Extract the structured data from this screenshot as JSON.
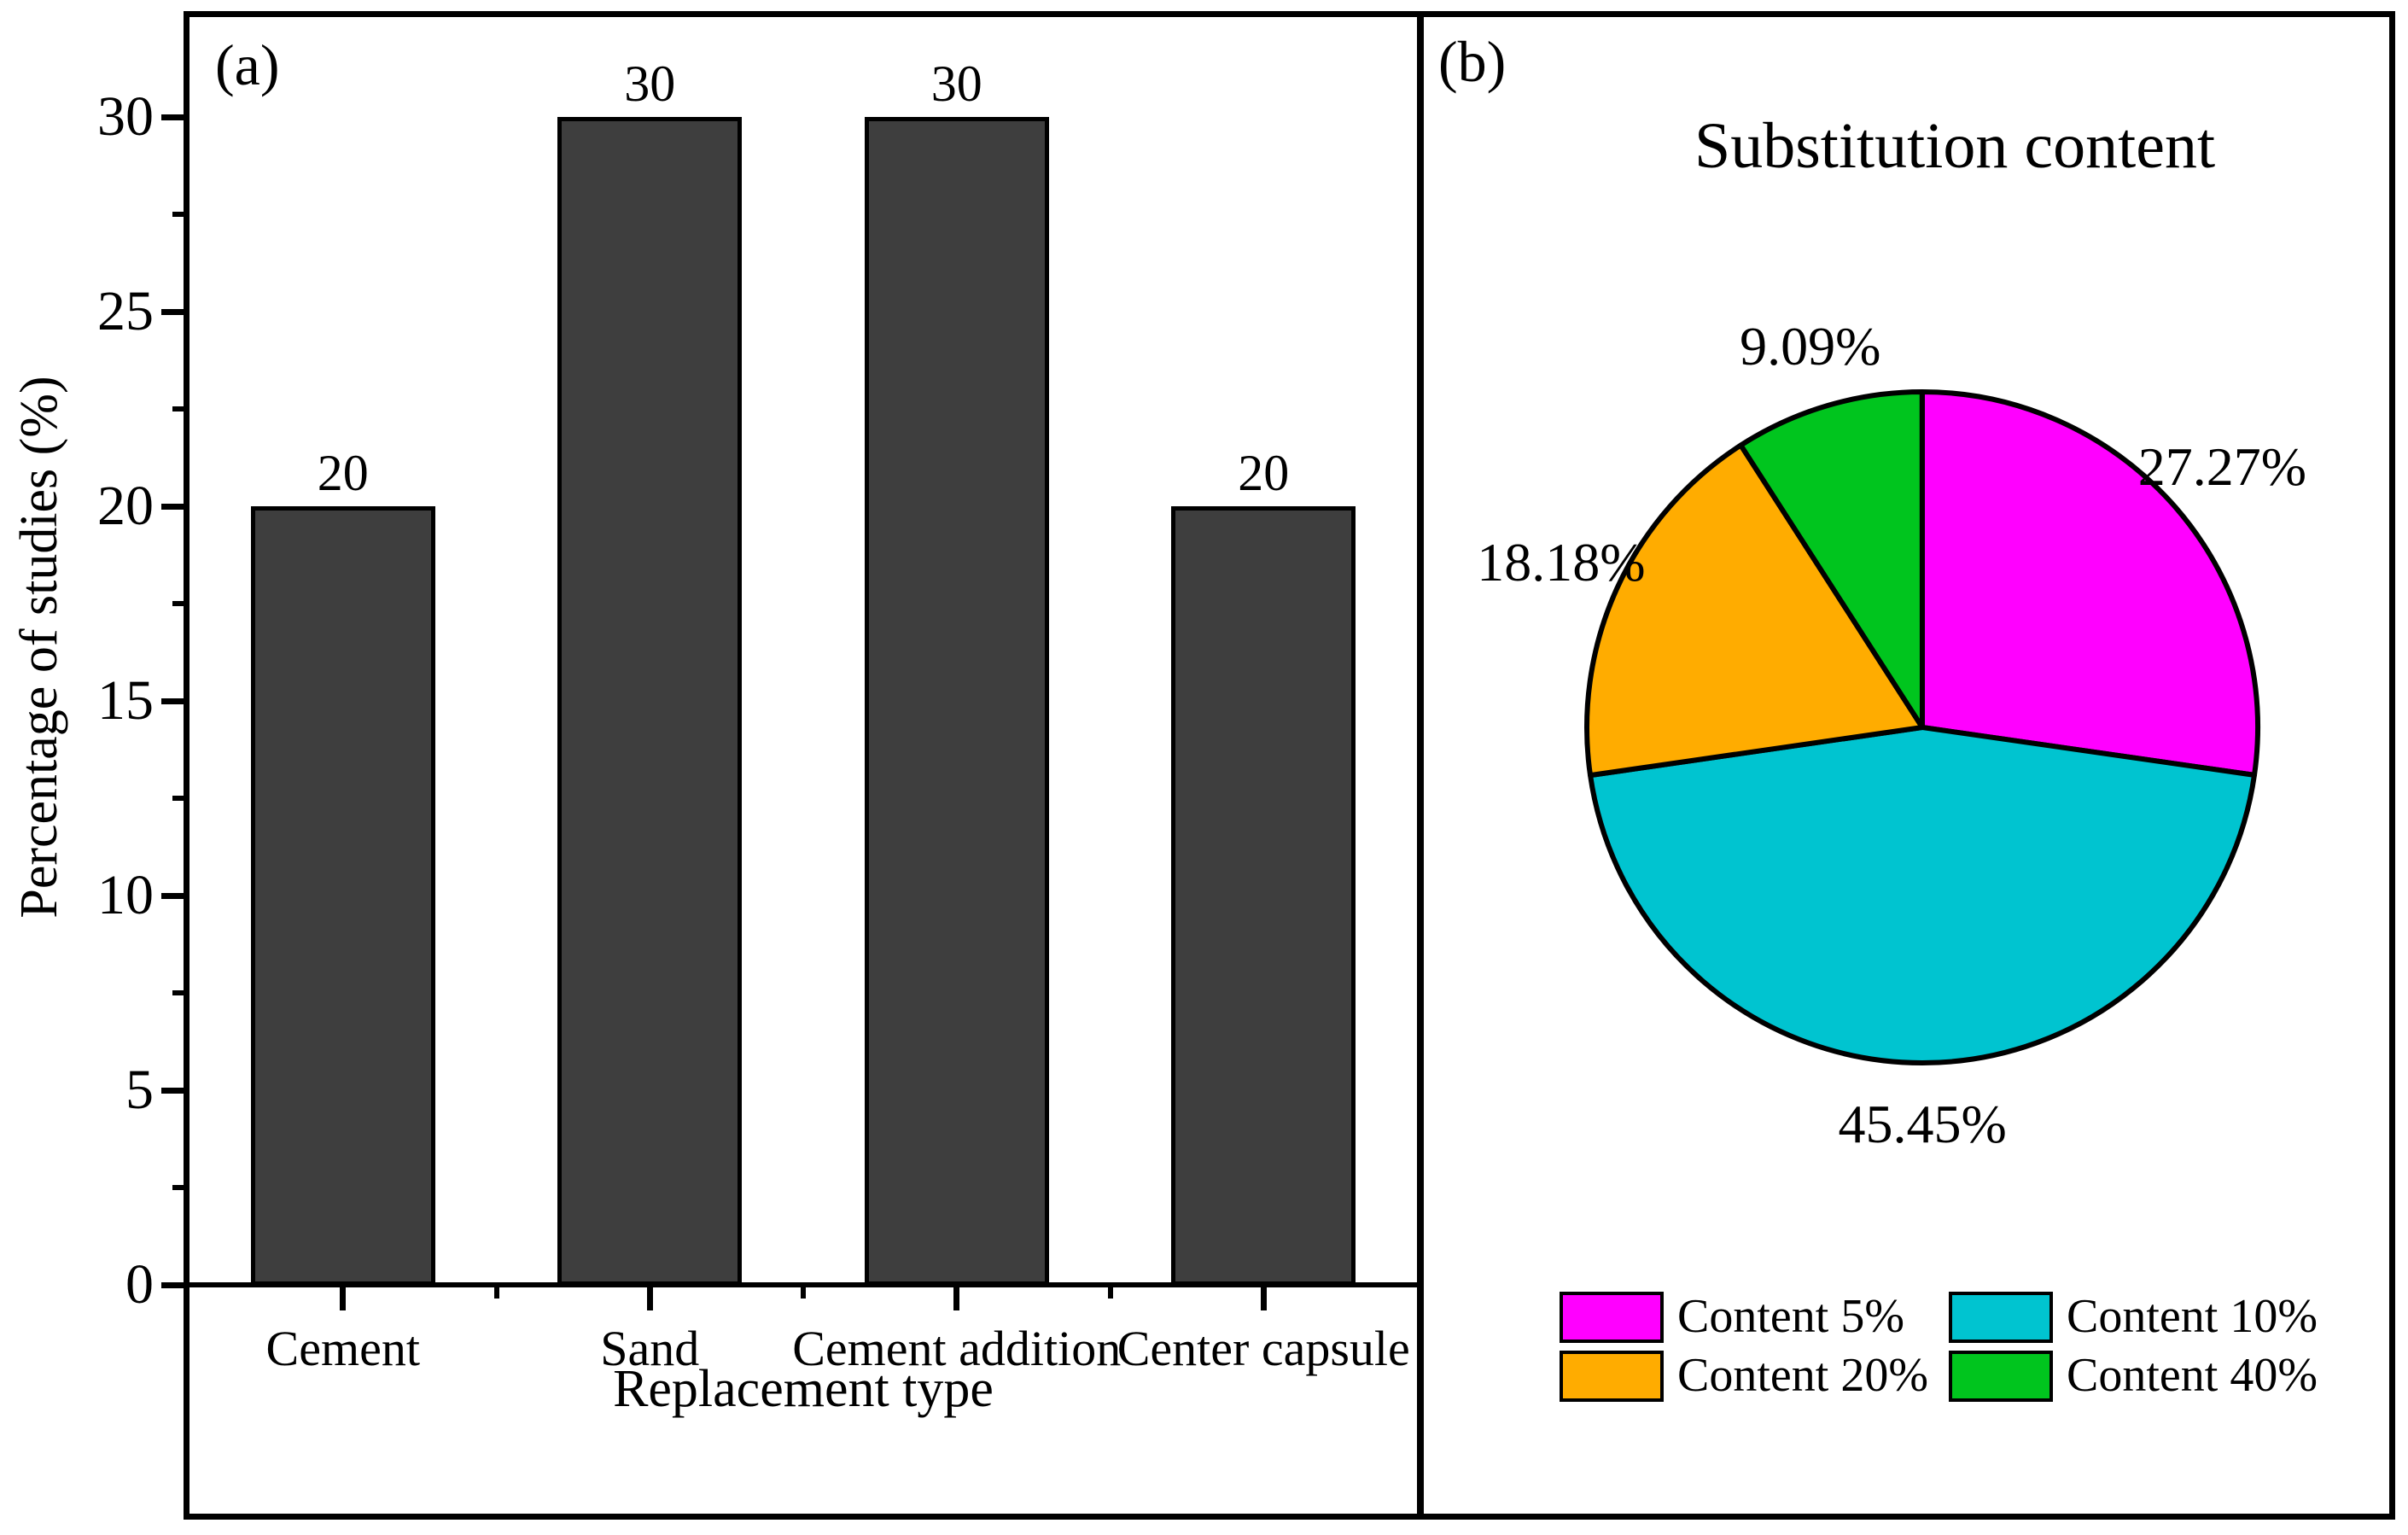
{
  "panels": {
    "a_label": "(a)",
    "b_label": "(b)"
  },
  "bar_chart": {
    "ylabel": "Percentage of studies (%)",
    "xlabel": "Replacement type",
    "ytick_labels": [
      "0",
      "5",
      "10",
      "15",
      "20",
      "25",
      "30"
    ],
    "categories": [
      "Cement",
      "Sand",
      "Cement addition",
      "Center capsule"
    ],
    "values": [
      20,
      30,
      30,
      20
    ],
    "bar_value_labels": [
      "20",
      "30",
      "30",
      "20"
    ],
    "bar_fill": "#3e3e3e",
    "axis_color": "#000000"
  },
  "pie_chart": {
    "title": "Substitution content",
    "slices": [
      {
        "legend_label": "Content 5%",
        "pct_label": "27.27%",
        "value": 27.27,
        "color": "#ff00ff"
      },
      {
        "legend_label": "Content 10%",
        "pct_label": "45.45%",
        "value": 45.45,
        "color": "#00c4d0"
      },
      {
        "legend_label": "Content 20%",
        "pct_label": "18.18%",
        "value": 18.18,
        "color": "#ffac00"
      },
      {
        "legend_label": "Content 40%",
        "pct_label": "9.09%",
        "value": 9.09,
        "color": "#00c51e"
      }
    ]
  },
  "chart_data": [
    {
      "type": "bar",
      "panel": "(a)",
      "title": "",
      "categories": [
        "Cement",
        "Sand",
        "Cement addition",
        "Center capsule"
      ],
      "values": [
        20,
        30,
        30,
        20
      ],
      "data_labels": [
        "20",
        "30",
        "30",
        "20"
      ],
      "xlabel": "Replacement type",
      "ylabel": "Percentage of studies (%)",
      "ylim": [
        0,
        32.5
      ],
      "ytick_step": 5,
      "ytick_minor_step": 2.5,
      "grid": false,
      "bar_color": "#3e3e3e",
      "bar_edge_color": "#000000"
    },
    {
      "type": "pie",
      "panel": "(b)",
      "title": "Substitution content",
      "labels": [
        "Content 5%",
        "Content 10%",
        "Content 20%",
        "Content 40%"
      ],
      "values": [
        27.27,
        45.45,
        18.18,
        9.09
      ],
      "slice_labels": [
        "27.27%",
        "45.45%",
        "18.18%",
        "9.09%"
      ],
      "colors": [
        "#ff00ff",
        "#00c4d0",
        "#ffac00",
        "#00c51e"
      ],
      "start_angle_deg": 0,
      "direction": "clockwise",
      "legend_position": "bottom",
      "legend_columns": 2
    }
  ]
}
